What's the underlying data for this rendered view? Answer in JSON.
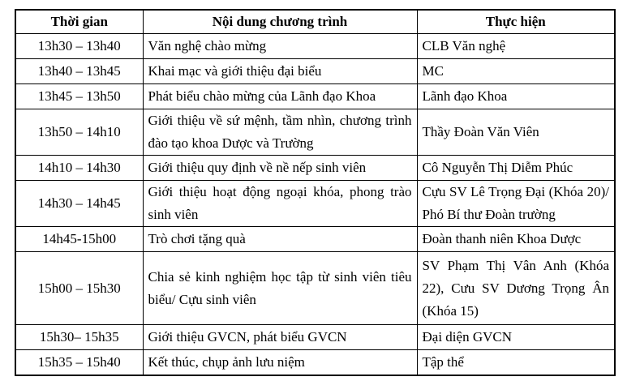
{
  "colors": {
    "border": "#000000",
    "text": "#000000",
    "background": "#ffffff"
  },
  "table": {
    "headers": [
      "Thời gian",
      "Nội dung chương trình",
      "Thực hiện"
    ],
    "rows": [
      {
        "time": "13h30 – 13h40",
        "content": "Văn nghệ chào mừng",
        "performer": "CLB Văn nghệ"
      },
      {
        "time": "13h40 – 13h45",
        "content": "Khai mạc và giới thiệu đại biểu",
        "performer": "MC"
      },
      {
        "time": "13h45 – 13h50",
        "content": "Phát biểu chào mừng của Lãnh đạo Khoa",
        "performer": "Lãnh đạo Khoa"
      },
      {
        "time": "13h50 – 14h10",
        "content": "Giới thiệu về sứ mệnh, tầm nhìn, chương trình đào tạo khoa Dược và Trường",
        "performer": "Thầy Đoàn Văn Viên"
      },
      {
        "time": "14h10 – 14h30",
        "content": "Giới thiệu quy định về nề nếp sinh viên",
        "performer": "Cô Nguyễn Thị Diễm Phúc"
      },
      {
        "time": "14h30 – 14h45",
        "content": "Giới thiệu hoạt động ngoại khóa, phong trào sinh viên",
        "performer": "Cựu SV Lê Trọng Đại (Khóa 20)/ Phó Bí thư Đoàn trường"
      },
      {
        "time": "14h45-15h00",
        "content": "Trò chơi tặng quà",
        "performer": "Đoàn thanh niên Khoa Dược"
      },
      {
        "time": "15h00 – 15h30",
        "content": "Chia sẻ kinh nghiệm học tập từ sinh viên tiêu biểu/ Cựu sinh viên",
        "performer": "SV Phạm Thị Vân Anh (Khóa 22), Cưu SV Dương Trọng Ân (Khóa 15)"
      },
      {
        "time": "15h30– 15h35",
        "content": "Giới thiệu GVCN, phát biểu GVCN",
        "performer": "Đại diện GVCN"
      },
      {
        "time": "15h35 – 15h40",
        "content": "Kết thúc, chụp ảnh lưu niệm",
        "performer": "Tập thể"
      }
    ]
  }
}
